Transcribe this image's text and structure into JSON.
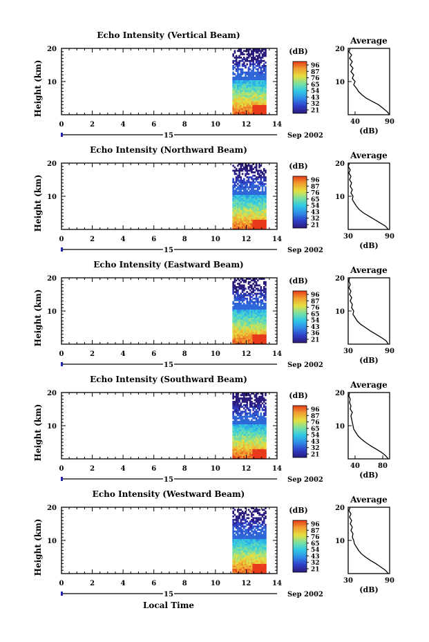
{
  "figure": {
    "x_axis_title": "Local Time",
    "unit_label": "(dB)",
    "avg_title": "Average",
    "height_label": "Height (km)",
    "date_left": "15",
    "date_right": "Sep 2002",
    "gradient_colors": [
      "#2a1a7a",
      "#2f3fc8",
      "#2f8ae6",
      "#2fc8e6",
      "#7ae0a0",
      "#e6e040",
      "#f0a030",
      "#e83a1a"
    ]
  },
  "chart_data": [
    {
      "type": "heatmap",
      "title": "Echo Intensity (Vertical Beam)",
      "xlim": [
        0,
        14
      ],
      "ylim": [
        0,
        20
      ],
      "xticks": [
        0,
        2,
        4,
        6,
        8,
        10,
        12,
        14
      ],
      "yticks": [
        10,
        20
      ],
      "data_time_range": [
        11.1,
        13.3
      ],
      "colorbar_ticks": [
        "96",
        "87",
        "76",
        "65",
        "54",
        "43",
        "32",
        "21"
      ],
      "avg": {
        "xlim": [
          30,
          90
        ],
        "xticks": [
          40,
          90
        ],
        "profile": [
          [
            90,
            0
          ],
          [
            86,
            1
          ],
          [
            80,
            2
          ],
          [
            74,
            3
          ],
          [
            65,
            4
          ],
          [
            56,
            5
          ],
          [
            50,
            6
          ],
          [
            45,
            7
          ],
          [
            42,
            8
          ],
          [
            38,
            9
          ],
          [
            40,
            10
          ],
          [
            36,
            11
          ],
          [
            38,
            12
          ],
          [
            34,
            13
          ],
          [
            37,
            14
          ],
          [
            33,
            15
          ],
          [
            36,
            16
          ],
          [
            32,
            17
          ],
          [
            35,
            18
          ],
          [
            31,
            19
          ],
          [
            33,
            20
          ]
        ]
      }
    },
    {
      "type": "heatmap",
      "title": "Echo Intensity (Northward Beam)",
      "xlim": [
        0,
        14
      ],
      "ylim": [
        0,
        20
      ],
      "xticks": [
        0,
        2,
        4,
        6,
        8,
        10,
        12,
        14
      ],
      "yticks": [
        10,
        20
      ],
      "data_time_range": [
        11.1,
        13.3
      ],
      "colorbar_ticks": [
        "96",
        "87",
        "76",
        "65",
        "54",
        "43",
        "32",
        "21"
      ],
      "avg": {
        "xlim": [
          30,
          90
        ],
        "xticks": [
          30,
          90
        ],
        "profile": [
          [
            88,
            0
          ],
          [
            84,
            1
          ],
          [
            76,
            2
          ],
          [
            68,
            3
          ],
          [
            60,
            4
          ],
          [
            52,
            5
          ],
          [
            46,
            6
          ],
          [
            42,
            7
          ],
          [
            39,
            8
          ],
          [
            36,
            9
          ],
          [
            37,
            10
          ],
          [
            34,
            11
          ],
          [
            36,
            12
          ],
          [
            33,
            13
          ],
          [
            35,
            14
          ],
          [
            32,
            15
          ],
          [
            34,
            16
          ],
          [
            31,
            17
          ],
          [
            33,
            18
          ],
          [
            30,
            19
          ],
          [
            32,
            20
          ]
        ]
      }
    },
    {
      "type": "heatmap",
      "title": "Echo Intensity (Eastward Beam)",
      "xlim": [
        0,
        14
      ],
      "ylim": [
        0,
        20
      ],
      "xticks": [
        0,
        2,
        4,
        6,
        8,
        10,
        12,
        14
      ],
      "yticks": [
        10,
        20
      ],
      "data_time_range": [
        11.1,
        13.3
      ],
      "colorbar_ticks": [
        "96",
        "87",
        "76",
        "65",
        "54",
        "43",
        "36",
        "21"
      ],
      "avg": {
        "xlim": [
          30,
          90
        ],
        "xticks": [
          30,
          90
        ],
        "profile": [
          [
            88,
            0
          ],
          [
            85,
            1
          ],
          [
            78,
            2
          ],
          [
            70,
            3
          ],
          [
            62,
            4
          ],
          [
            55,
            5
          ],
          [
            48,
            6
          ],
          [
            43,
            7
          ],
          [
            40,
            8
          ],
          [
            37,
            9
          ],
          [
            38,
            10
          ],
          [
            35,
            11
          ],
          [
            36,
            12
          ],
          [
            33,
            13
          ],
          [
            35,
            14
          ],
          [
            32,
            15
          ],
          [
            34,
            16
          ],
          [
            31,
            17
          ],
          [
            33,
            18
          ],
          [
            31,
            19
          ],
          [
            32,
            20
          ]
        ]
      }
    },
    {
      "type": "heatmap",
      "title": "Echo Intensity (Southward Beam)",
      "xlim": [
        0,
        14
      ],
      "ylim": [
        0,
        20
      ],
      "xticks": [
        0,
        2,
        4,
        6,
        8,
        10,
        12,
        14
      ],
      "yticks": [
        10,
        20
      ],
      "data_time_range": [
        11.1,
        13.3
      ],
      "colorbar_ticks": [
        "96",
        "87",
        "76",
        "65",
        "54",
        "43",
        "32",
        "21"
      ],
      "avg": {
        "xlim": [
          30,
          90
        ],
        "xticks": [
          40,
          80
        ],
        "profile": [
          [
            88,
            0
          ],
          [
            84,
            1
          ],
          [
            78,
            2
          ],
          [
            70,
            3
          ],
          [
            62,
            4
          ],
          [
            55,
            5
          ],
          [
            49,
            6
          ],
          [
            44,
            7
          ],
          [
            41,
            8
          ],
          [
            38,
            9
          ],
          [
            37,
            10
          ],
          [
            36,
            11
          ],
          [
            35,
            12
          ],
          [
            34,
            13
          ],
          [
            36,
            14
          ],
          [
            33,
            15
          ],
          [
            34,
            16
          ],
          [
            32,
            17
          ],
          [
            33,
            18
          ],
          [
            31,
            19
          ],
          [
            32,
            20
          ]
        ]
      }
    },
    {
      "type": "heatmap",
      "title": "Echo Intensity (Westward Beam)",
      "xlim": [
        0,
        14
      ],
      "ylim": [
        0,
        20
      ],
      "xticks": [
        0,
        2,
        4,
        6,
        8,
        10,
        12,
        14
      ],
      "yticks": [
        10,
        20
      ],
      "data_time_range": [
        11.1,
        13.3
      ],
      "colorbar_ticks": [
        "96",
        "87",
        "76",
        "65",
        "54",
        "43",
        "32",
        "21"
      ],
      "avg": {
        "xlim": [
          30,
          90
        ],
        "xticks": [
          30,
          90
        ],
        "profile": [
          [
            88,
            0
          ],
          [
            84,
            1
          ],
          [
            77,
            2
          ],
          [
            70,
            3
          ],
          [
            62,
            4
          ],
          [
            55,
            5
          ],
          [
            49,
            6
          ],
          [
            45,
            7
          ],
          [
            42,
            8
          ],
          [
            39,
            9
          ],
          [
            38,
            10
          ],
          [
            36,
            11
          ],
          [
            37,
            12
          ],
          [
            34,
            13
          ],
          [
            36,
            14
          ],
          [
            33,
            15
          ],
          [
            35,
            16
          ],
          [
            32,
            17
          ],
          [
            34,
            18
          ],
          [
            31,
            19
          ],
          [
            33,
            20
          ]
        ]
      }
    }
  ]
}
